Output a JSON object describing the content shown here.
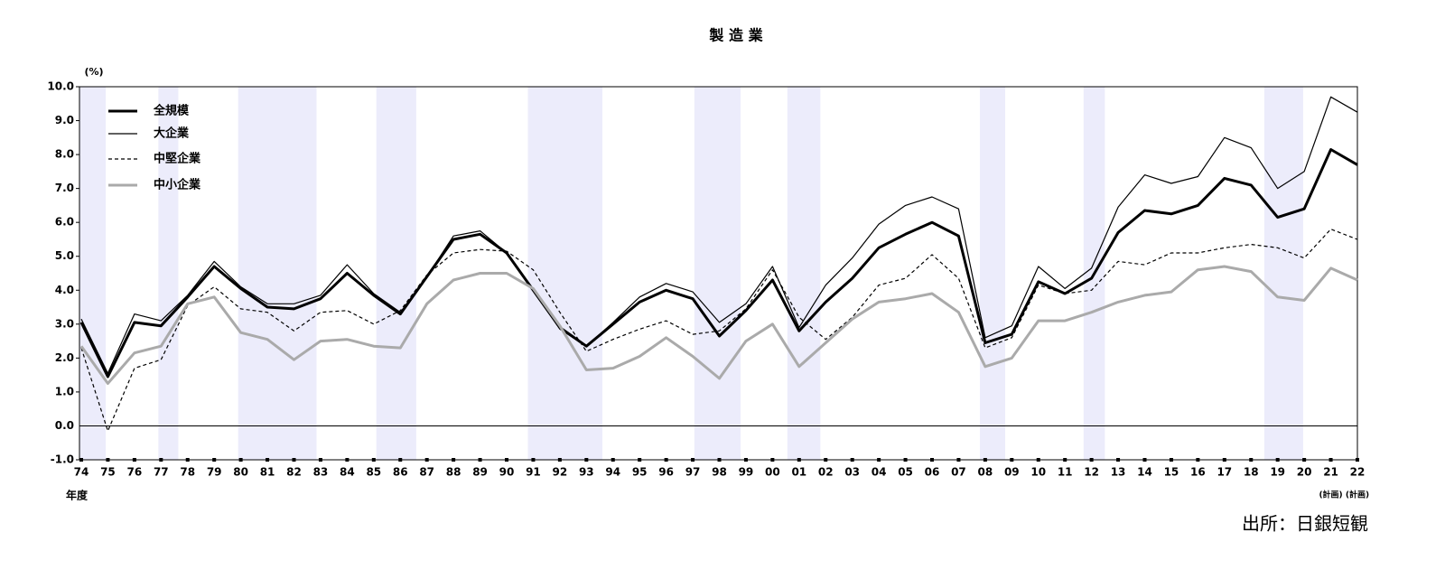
{
  "chart_data": {
    "type": "line",
    "title": "製 造 業",
    "y_unit": "(%)",
    "x_label": "年度",
    "source": "出所：日銀短観",
    "categories": [
      "74",
      "75",
      "76",
      "77",
      "78",
      "79",
      "80",
      "81",
      "82",
      "83",
      "84",
      "85",
      "86",
      "87",
      "88",
      "89",
      "90",
      "91",
      "92",
      "93",
      "94",
      "95",
      "96",
      "97",
      "98",
      "99",
      "00",
      "01",
      "02",
      "03",
      "04",
      "05",
      "06",
      "07",
      "08",
      "09",
      "10",
      "11",
      "12",
      "13",
      "14",
      "15",
      "16",
      "17",
      "18",
      "19",
      "20",
      "21",
      "22"
    ],
    "x_sublabels": [
      null,
      null,
      null,
      null,
      null,
      null,
      null,
      null,
      null,
      null,
      null,
      null,
      null,
      null,
      null,
      null,
      null,
      null,
      null,
      null,
      null,
      null,
      null,
      null,
      null,
      null,
      null,
      null,
      null,
      null,
      null,
      null,
      null,
      null,
      null,
      null,
      null,
      null,
      null,
      null,
      null,
      null,
      null,
      null,
      null,
      null,
      null,
      "(計画)",
      "(計画)"
    ],
    "shaded_spans": [
      [
        -0.07,
        0.92
      ],
      [
        2.9,
        3.65
      ],
      [
        5.9,
        8.85
      ],
      [
        11.1,
        12.6
      ],
      [
        16.8,
        19.6
      ],
      [
        23.06,
        24.8
      ],
      [
        26.56,
        27.8
      ],
      [
        33.8,
        34.75
      ],
      [
        37.7,
        38.5
      ],
      [
        44.5,
        45.96
      ]
    ],
    "shade_color": "#ececfb",
    "ylim": [
      -1,
      10
    ],
    "yticks": [
      {
        "value": 10,
        "label": "10.0"
      },
      {
        "value": 9,
        "label": "9.0"
      },
      {
        "value": 8,
        "label": "8.0"
      },
      {
        "value": 7,
        "label": "7.0"
      },
      {
        "value": 6,
        "label": "6.0"
      },
      {
        "value": 5,
        "label": "5.0"
      },
      {
        "value": 4,
        "label": "4.0"
      },
      {
        "value": 3,
        "label": "3.0"
      },
      {
        "value": 2,
        "label": "2.0"
      },
      {
        "value": 1,
        "label": "1.0"
      },
      {
        "value": 0,
        "label": "0.0"
      },
      {
        "value": -1,
        "label": "-1.0"
      }
    ],
    "legend": "upper-left",
    "series": [
      {
        "name": "全規模",
        "color": "#000000",
        "width": 3,
        "dash": "none",
        "values": [
          3.05,
          1.45,
          3.05,
          2.95,
          3.8,
          4.7,
          4.05,
          3.5,
          3.45,
          3.75,
          4.5,
          3.85,
          3.3,
          4.4,
          5.5,
          5.65,
          5.1,
          4.0,
          2.9,
          2.35,
          3.0,
          3.65,
          4.0,
          3.75,
          2.65,
          3.4,
          4.3,
          2.8,
          3.65,
          4.35,
          5.25,
          5.65,
          6.0,
          5.6,
          2.45,
          2.7,
          4.25,
          3.9,
          4.35,
          5.7,
          6.35,
          6.25,
          6.5,
          7.3,
          7.1,
          6.15,
          6.4,
          8.15,
          7.7
        ]
      },
      {
        "name": "大企業",
        "color": "#000000",
        "width": 1.2,
        "dash": "none",
        "values": [
          3.15,
          1.55,
          3.3,
          3.1,
          3.85,
          4.85,
          4.1,
          3.6,
          3.6,
          3.85,
          4.75,
          3.9,
          3.35,
          4.4,
          5.6,
          5.75,
          5.1,
          4.0,
          2.85,
          2.35,
          3.05,
          3.8,
          4.2,
          3.95,
          3.05,
          3.6,
          4.7,
          2.9,
          4.15,
          4.95,
          5.95,
          6.5,
          6.75,
          6.4,
          2.6,
          2.95,
          4.7,
          4.05,
          4.65,
          6.45,
          7.4,
          7.15,
          7.35,
          8.5,
          8.2,
          7.0,
          7.5,
          9.7,
          9.25
        ]
      },
      {
        "name": "中堅企業",
        "color": "#000000",
        "width": 1.2,
        "dash": "4 3",
        "values": [
          2.3,
          -0.15,
          1.7,
          1.95,
          3.55,
          4.1,
          3.45,
          3.35,
          2.8,
          3.35,
          3.4,
          3.0,
          3.4,
          4.45,
          5.1,
          5.2,
          5.15,
          4.6,
          3.35,
          2.2,
          2.55,
          2.85,
          3.1,
          2.7,
          2.8,
          3.45,
          4.6,
          3.2,
          2.55,
          3.2,
          4.15,
          4.35,
          5.05,
          4.35,
          2.3,
          2.6,
          4.15,
          3.9,
          4.0,
          4.85,
          4.75,
          5.1,
          5.1,
          5.25,
          5.35,
          5.25,
          4.95,
          5.8,
          5.5
        ]
      },
      {
        "name": "中小企業",
        "color": "#aaaaaa",
        "width": 3,
        "dash": "none",
        "values": [
          2.35,
          1.25,
          2.15,
          2.35,
          3.6,
          3.8,
          2.75,
          2.55,
          1.95,
          2.5,
          2.55,
          2.35,
          2.3,
          3.6,
          4.3,
          4.5,
          4.5,
          4.05,
          2.95,
          1.65,
          1.7,
          2.05,
          2.6,
          2.05,
          1.4,
          2.5,
          3.0,
          1.75,
          2.45,
          3.15,
          3.65,
          3.75,
          3.9,
          3.35,
          1.75,
          2.0,
          3.1,
          3.1,
          3.35,
          3.65,
          3.85,
          3.95,
          4.6,
          4.7,
          4.55,
          3.8,
          3.7,
          4.65,
          4.3
        ]
      }
    ]
  }
}
